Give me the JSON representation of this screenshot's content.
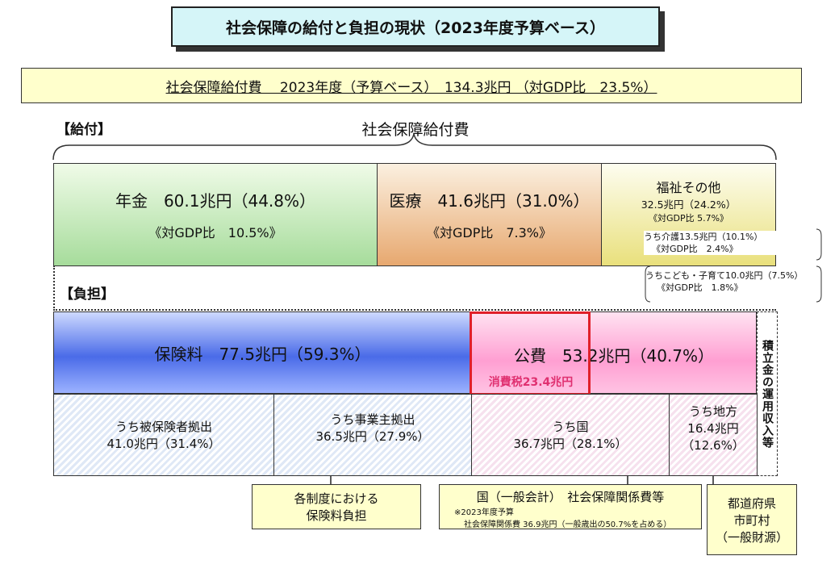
{
  "title": "社会保障の給付と負担の現状（2023年度予算ベース）",
  "summary": "社会保障給付費　 2023年度（予算ベース）　134.3兆円 （対GDP比　23.5%）",
  "benefits": {
    "section_label": "【給付】",
    "bracket_label": "社会保障給付費",
    "pension": {
      "title": "年金　60.1兆円（44.8%）",
      "gdp": "《対GDP比　10.5%》"
    },
    "medical": {
      "title": "医療　41.6兆円（31.0%）",
      "gdp": "《対GDP比　7.3%》"
    },
    "welfare": {
      "title": "福祉その他",
      "amount": "32.5兆円（24.2%）",
      "gdp": "《対GDP比 5.7%》",
      "care": "うち介護13.5兆円（10.1%）",
      "care_gdp": "《対GDP比　2.4%》",
      "child": "うちこども・子育て10.0兆円（7.5%）",
      "child_gdp": "《対GDP比　1.8%》"
    }
  },
  "burden": {
    "section_label": "【負担】",
    "premium": "保険料　77.5兆円（59.3%）",
    "public": "公費　53.2兆円（40.7%）",
    "consumption_tax": "消費税23.4兆円",
    "reserve": "積立金の運用収入等",
    "sub": {
      "insured_label": "うち被保険者拠出",
      "insured_value": "41.0兆円（31.4%）",
      "employer_label": "うち事業主拠出",
      "employer_value": "36.5兆円（27.9%）",
      "national_label": "うち国",
      "national_value": "36.7兆円（28.1%）",
      "local_label": "うち地方",
      "local_value": "16.4兆円",
      "local_pct": "（12.6%）"
    }
  },
  "callouts": {
    "insurance_line1": "各制度における",
    "insurance_line2": "保険料負担",
    "national_title": "国（一般会計）　社会保障関係費等",
    "national_note1": "※2023年度予算",
    "national_note2": "社会保障関係費 36.9兆円（一般歳出の50.7%を占める）",
    "local_line1": "都道府県",
    "local_line2": "市町村",
    "local_line3": "（一般財源）"
  }
}
